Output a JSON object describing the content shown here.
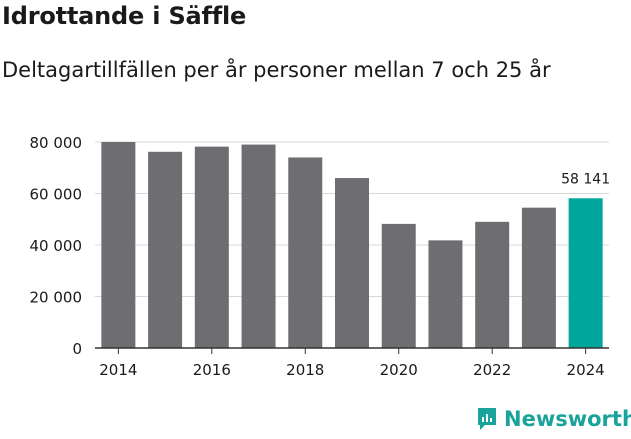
{
  "header": {
    "title": "Idrottande i Säffle",
    "subtitle": "Deltagartillfällen per år personer mellan 7 och 25 år"
  },
  "chart_data": {
    "type": "bar",
    "categories": [
      "2014",
      "2015",
      "2016",
      "2017",
      "2018",
      "2019",
      "2020",
      "2021",
      "2022",
      "2023",
      "2024"
    ],
    "values": [
      80000,
      76200,
      78200,
      79000,
      74000,
      66000,
      48200,
      41800,
      49000,
      54500,
      58141
    ],
    "ylim": [
      0,
      80000
    ],
    "yticks": [
      0,
      20000,
      40000,
      60000,
      80000
    ],
    "ytick_labels": [
      "0",
      "20 000",
      "40 000",
      "60 000",
      "80 000"
    ],
    "xtick_labels": [
      "2014",
      "2016",
      "2018",
      "2020",
      "2022",
      "2024"
    ],
    "highlight_label": "58 141",
    "colors": {
      "bar": "#6e6d72",
      "highlight": "#00a59b",
      "grid": "#d9d9d9",
      "axis": "#333333"
    }
  },
  "brand": {
    "name": "Newsworthy",
    "color": "#1aa39b"
  }
}
